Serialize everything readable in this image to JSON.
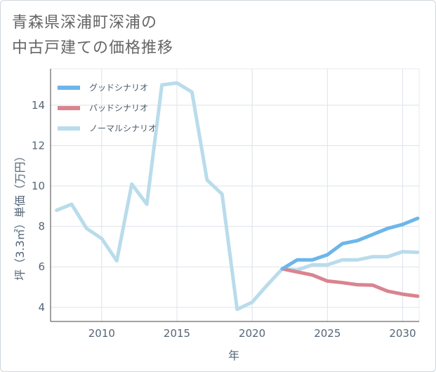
{
  "title": "青森県深浦町深浦の\n中古戸建ての価格推移",
  "chart_data": {
    "type": "line",
    "xlabel": "年",
    "ylabel": "坪（3.3㎡）単価（万円）",
    "xlim": [
      2006.6,
      2031.1
    ],
    "ylim": [
      3.3,
      15.8
    ],
    "xticks": [
      2010,
      2015,
      2020,
      2025,
      2030
    ],
    "yticks": [
      4,
      6,
      8,
      10,
      12,
      14
    ],
    "grid": true,
    "legend_position": "top-left",
    "series": [
      {
        "name": "グッドシナリオ",
        "color": "#6cb6ea",
        "x": [
          2022,
          2023,
          2024,
          2025,
          2026,
          2027,
          2028,
          2029,
          2030,
          2031
        ],
        "y": [
          5.9,
          6.35,
          6.35,
          6.6,
          7.15,
          7.3,
          7.6,
          7.9,
          8.1,
          8.4
        ]
      },
      {
        "name": "バッドシナリオ",
        "color": "#d9848f",
        "x": [
          2022,
          2023,
          2024,
          2025,
          2026,
          2027,
          2028,
          2029,
          2030,
          2031
        ],
        "y": [
          5.9,
          5.75,
          5.6,
          5.3,
          5.22,
          5.12,
          5.1,
          4.8,
          4.65,
          4.55
        ]
      },
      {
        "name": "ノーマルシナリオ",
        "color": "#b9dceb",
        "x": [
          2007,
          2008,
          2009,
          2010,
          2011,
          2012,
          2013,
          2014,
          2015,
          2016,
          2017,
          2018,
          2019,
          2020,
          2021,
          2022,
          2023,
          2024,
          2025,
          2026,
          2027,
          2028,
          2029,
          2030,
          2031
        ],
        "y": [
          8.8,
          9.1,
          7.9,
          7.4,
          6.3,
          10.1,
          9.1,
          15.0,
          15.1,
          14.65,
          10.3,
          9.6,
          3.9,
          4.25,
          5.1,
          5.9,
          5.85,
          6.1,
          6.1,
          6.35,
          6.35,
          6.5,
          6.5,
          6.75,
          6.72
        ]
      }
    ]
  }
}
